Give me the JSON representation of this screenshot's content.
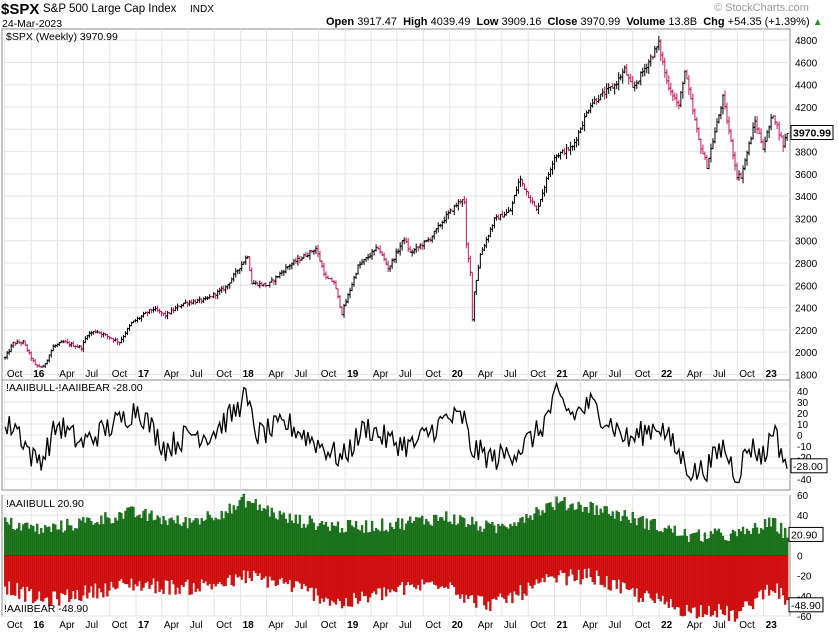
{
  "header": {
    "symbol": "$SPX",
    "name": "S&P 500 Large Cap Index",
    "exchange": "INDX",
    "date": "24-Mar-2023",
    "watermark": "© StockCharts.com",
    "quote": {
      "open_label": "Open",
      "open": "3917.47",
      "high_label": "High",
      "high": "4039.49",
      "low_label": "Low",
      "low": "3909.16",
      "close_label": "Close",
      "close": "3970.99",
      "volume_label": "Volume",
      "volume": "13.8B",
      "chg_label": "Chg",
      "chg": "+54.35 (+1.39%)"
    }
  },
  "colors": {
    "up_bar": "#000000",
    "down_bar": "#c2185b",
    "bull": "#1e7a1e",
    "bear": "#e01010",
    "grid": "#e4e4e4",
    "panel_border": "#888888",
    "last_value_box": "#ffffff"
  },
  "chart_data": [
    {
      "type": "ohlc",
      "legend": "$SPX (Weekly) 3970.99",
      "last_value": "3970.99",
      "frequency": "weekly",
      "x_range": [
        "2015-10",
        "2023-03"
      ],
      "ylim": [
        1750,
        4900
      ],
      "yticks": [
        1800,
        2000,
        2200,
        2400,
        2600,
        2800,
        3000,
        3200,
        3400,
        3600,
        3800,
        4000,
        4200,
        4400,
        4600,
        4800
      ],
      "close_anchors": [
        [
          "2015-10-02",
          1950
        ],
        [
          "2015-10-30",
          2080
        ],
        [
          "2015-12-04",
          2090
        ],
        [
          "2016-01-15",
          1880
        ],
        [
          "2016-02-12",
          1865
        ],
        [
          "2016-03-18",
          2050
        ],
        [
          "2016-04-22",
          2090
        ],
        [
          "2016-06-24",
          2040
        ],
        [
          "2016-07-15",
          2160
        ],
        [
          "2016-08-15",
          2190
        ],
        [
          "2016-11-04",
          2090
        ],
        [
          "2016-12-16",
          2260
        ],
        [
          "2017-03-01",
          2390
        ],
        [
          "2017-04-14",
          2330
        ],
        [
          "2017-06-16",
          2440
        ],
        [
          "2017-09-01",
          2470
        ],
        [
          "2017-11-10",
          2580
        ],
        [
          "2018-01-26",
          2870
        ],
        [
          "2018-02-09",
          2620
        ],
        [
          "2018-04-06",
          2600
        ],
        [
          "2018-06-15",
          2770
        ],
        [
          "2018-09-21",
          2930
        ],
        [
          "2018-10-26",
          2660
        ],
        [
          "2018-11-23",
          2630
        ],
        [
          "2018-12-21",
          2350
        ],
        [
          "2019-02-15",
          2770
        ],
        [
          "2019-04-26",
          2940
        ],
        [
          "2019-06-01",
          2750
        ],
        [
          "2019-07-26",
          3020
        ],
        [
          "2019-08-16",
          2890
        ],
        [
          "2019-10-25",
          3020
        ],
        [
          "2019-12-20",
          3220
        ],
        [
          "2020-02-14",
          3380
        ],
        [
          "2020-02-21",
          3337
        ],
        [
          "2020-02-28",
          2954
        ],
        [
          "2020-03-13",
          2711
        ],
        [
          "2020-03-20",
          2305
        ],
        [
          "2020-03-27",
          2541
        ],
        [
          "2020-04-17",
          2875
        ],
        [
          "2020-06-05",
          3190
        ],
        [
          "2020-07-31",
          3270
        ],
        [
          "2020-09-01",
          3560
        ],
        [
          "2020-10-30",
          3270
        ],
        [
          "2020-12-31",
          3756
        ],
        [
          "2021-03-05",
          3840
        ],
        [
          "2021-05-07",
          4230
        ],
        [
          "2021-07-30",
          4395
        ],
        [
          "2021-09-03",
          4535
        ],
        [
          "2021-10-01",
          4360
        ],
        [
          "2021-12-31",
          4766
        ],
        [
          "2022-01-28",
          4430
        ],
        [
          "2022-03-11",
          4200
        ],
        [
          "2022-03-31",
          4530
        ],
        [
          "2022-05-20",
          3900
        ],
        [
          "2022-06-17",
          3670
        ],
        [
          "2022-08-12",
          4280
        ],
        [
          "2022-09-30",
          3585
        ],
        [
          "2022-10-14",
          3580
        ],
        [
          "2022-12-02",
          4070
        ],
        [
          "2022-12-30",
          3840
        ],
        [
          "2023-02-03",
          4140
        ],
        [
          "2023-03-10",
          3860
        ],
        [
          "2023-03-24",
          3970.99
        ]
      ]
    },
    {
      "type": "line",
      "legend": "!AAIIBULL-!AAIIBEAR -28.00",
      "last_value": "-28.00",
      "ylim": [
        -50,
        50
      ],
      "yticks": [
        40,
        30,
        20,
        10,
        0,
        -10,
        -20,
        -30,
        -40
      ],
      "anchors": [
        [
          "2015-10-02",
          5
        ],
        [
          "2015-11-06",
          10
        ],
        [
          "2016-01-08",
          -22
        ],
        [
          "2016-02-12",
          -20
        ],
        [
          "2016-04-01",
          10
        ],
        [
          "2016-06-24",
          -8
        ],
        [
          "2016-11-18",
          15
        ],
        [
          "2017-01-06",
          25
        ],
        [
          "2017-04-14",
          -12
        ],
        [
          "2017-07-14",
          2
        ],
        [
          "2017-09-15",
          0
        ],
        [
          "2017-12-29",
          25
        ],
        [
          "2018-01-05",
          42
        ],
        [
          "2018-03-02",
          0
        ],
        [
          "2018-06-15",
          10
        ],
        [
          "2018-12-21",
          -22
        ],
        [
          "2019-03-15",
          8
        ],
        [
          "2019-06-01",
          -5
        ],
        [
          "2019-08-23",
          -10
        ],
        [
          "2019-12-20",
          15
        ],
        [
          "2020-02-21",
          15
        ],
        [
          "2020-03-13",
          -12
        ],
        [
          "2020-06-05",
          -22
        ],
        [
          "2020-09-04",
          -12
        ],
        [
          "2020-11-13",
          5
        ],
        [
          "2021-01-08",
          35
        ],
        [
          "2021-03-05",
          18
        ],
        [
          "2021-05-07",
          28
        ],
        [
          "2021-09-17",
          -5
        ],
        [
          "2021-12-31",
          10
        ],
        [
          "2022-02-25",
          -12
        ],
        [
          "2022-04-29",
          -35
        ],
        [
          "2022-06-17",
          -30
        ],
        [
          "2022-08-12",
          -10
        ],
        [
          "2022-09-30",
          -37
        ],
        [
          "2022-11-11",
          -10
        ],
        [
          "2023-01-06",
          -20
        ],
        [
          "2023-02-03",
          10
        ],
        [
          "2023-02-17",
          -5
        ],
        [
          "2023-03-24",
          -28
        ]
      ]
    },
    {
      "type": "bar",
      "legend_bull": "!AAIIBULL 20.90",
      "legend_bear": "!AAIIBEAR -48.90",
      "last_bull": "20.90",
      "last_bear": "-48.90",
      "ylim": [
        -60,
        60
      ],
      "yticks": [
        60,
        40,
        20,
        0,
        -20,
        -40,
        -60
      ],
      "bull_anchors": [
        [
          "2015-10-02",
          32
        ],
        [
          "2016-02-12",
          25
        ],
        [
          "2016-12-16",
          42
        ],
        [
          "2017-06-16",
          32
        ],
        [
          "2017-12-29",
          48
        ],
        [
          "2018-01-05",
          56
        ],
        [
          "2018-06-15",
          36
        ],
        [
          "2018-12-21",
          28
        ],
        [
          "2019-06-01",
          30
        ],
        [
          "2019-12-20",
          38
        ],
        [
          "2020-03-13",
          32
        ],
        [
          "2020-06-05",
          26
        ],
        [
          "2021-01-08",
          52
        ],
        [
          "2021-05-07",
          48
        ],
        [
          "2021-09-17",
          38
        ],
        [
          "2022-04-29",
          18
        ],
        [
          "2022-06-17",
          20
        ],
        [
          "2022-09-30",
          20
        ],
        [
          "2023-02-03",
          32
        ],
        [
          "2023-03-24",
          20.9
        ]
      ],
      "bear_anchors": [
        [
          "2015-10-02",
          -30
        ],
        [
          "2016-02-12",
          -45
        ],
        [
          "2016-12-16",
          -28
        ],
        [
          "2017-06-16",
          -32
        ],
        [
          "2017-12-29",
          -25
        ],
        [
          "2018-01-05",
          -20
        ],
        [
          "2018-06-15",
          -28
        ],
        [
          "2018-12-21",
          -48
        ],
        [
          "2019-06-01",
          -36
        ],
        [
          "2019-12-20",
          -25
        ],
        [
          "2020-03-13",
          -44
        ],
        [
          "2020-06-05",
          -48
        ],
        [
          "2021-01-08",
          -22
        ],
        [
          "2021-05-07",
          -20
        ],
        [
          "2021-09-17",
          -36
        ],
        [
          "2022-04-29",
          -56
        ],
        [
          "2022-06-17",
          -52
        ],
        [
          "2022-09-30",
          -60
        ],
        [
          "2023-02-03",
          -28
        ],
        [
          "2023-03-24",
          -48.9
        ]
      ]
    }
  ],
  "x_axis": {
    "labels": [
      {
        "text": "Oct",
        "date": "2015-10-01",
        "bold": false
      },
      {
        "text": "16",
        "date": "2016-01-01",
        "bold": true
      },
      {
        "text": "Apr",
        "date": "2016-04-01",
        "bold": false
      },
      {
        "text": "Jul",
        "date": "2016-07-01",
        "bold": false
      },
      {
        "text": "Oct",
        "date": "2016-10-01",
        "bold": false
      },
      {
        "text": "17",
        "date": "2017-01-01",
        "bold": true
      },
      {
        "text": "Apr",
        "date": "2017-04-01",
        "bold": false
      },
      {
        "text": "Jul",
        "date": "2017-07-01",
        "bold": false
      },
      {
        "text": "Oct",
        "date": "2017-10-01",
        "bold": false
      },
      {
        "text": "18",
        "date": "2018-01-01",
        "bold": true
      },
      {
        "text": "Apr",
        "date": "2018-04-01",
        "bold": false
      },
      {
        "text": "Jul",
        "date": "2018-07-01",
        "bold": false
      },
      {
        "text": "Oct",
        "date": "2018-10-01",
        "bold": false
      },
      {
        "text": "19",
        "date": "2019-01-01",
        "bold": true
      },
      {
        "text": "Apr",
        "date": "2019-04-01",
        "bold": false
      },
      {
        "text": "Jul",
        "date": "2019-07-01",
        "bold": false
      },
      {
        "text": "Oct",
        "date": "2019-10-01",
        "bold": false
      },
      {
        "text": "20",
        "date": "2020-01-01",
        "bold": true
      },
      {
        "text": "Apr",
        "date": "2020-04-01",
        "bold": false
      },
      {
        "text": "Jul",
        "date": "2020-07-01",
        "bold": false
      },
      {
        "text": "Oct",
        "date": "2020-10-01",
        "bold": false
      },
      {
        "text": "21",
        "date": "2021-01-01",
        "bold": true
      },
      {
        "text": "Apr",
        "date": "2021-04-01",
        "bold": false
      },
      {
        "text": "Jul",
        "date": "2021-07-01",
        "bold": false
      },
      {
        "text": "Oct",
        "date": "2021-10-01",
        "bold": false
      },
      {
        "text": "22",
        "date": "2022-01-01",
        "bold": true
      },
      {
        "text": "Apr",
        "date": "2022-04-01",
        "bold": false
      },
      {
        "text": "Jul",
        "date": "2022-07-01",
        "bold": false
      },
      {
        "text": "Oct",
        "date": "2022-10-01",
        "bold": false
      },
      {
        "text": "23",
        "date": "2023-01-01",
        "bold": true
      }
    ]
  }
}
